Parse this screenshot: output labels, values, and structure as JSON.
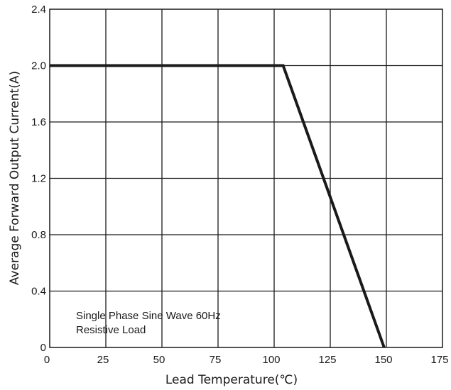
{
  "chart_data": {
    "type": "line",
    "xlabel": "Lead Temperature(℃)",
    "ylabel": "Average Forward Output Current(A)",
    "xlim": [
      0,
      175
    ],
    "ylim": [
      0,
      2.4
    ],
    "x_ticks": [
      0,
      25,
      50,
      75,
      100,
      125,
      150,
      175
    ],
    "y_ticks": [
      0,
      0.4,
      0.8,
      1.2,
      1.6,
      2.0,
      2.4
    ],
    "x_tick_labels": [
      "0",
      "25",
      "50",
      "75",
      "100",
      "125",
      "150",
      "175"
    ],
    "y_tick_labels": [
      "0",
      "0.4",
      "0.8",
      "1.2",
      "1.6",
      "2.0",
      "2.4"
    ],
    "grid": true,
    "series": [
      {
        "x": [
          0,
          104,
          149
        ],
        "y": [
          2.0,
          2.0,
          0
        ]
      }
    ],
    "annotation": {
      "line1": "Single Phase  Sine Wave 60Hz",
      "line2": "Resistive Load"
    }
  }
}
